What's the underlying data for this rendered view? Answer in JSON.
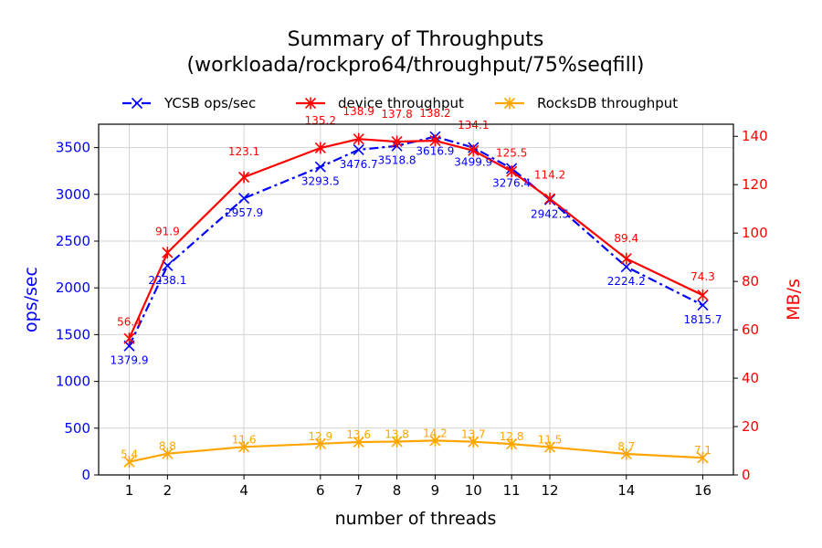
{
  "chart_data": {
    "type": "line",
    "title": "Summary of Throughputs",
    "subtitle": "(workloada/rockpro64/throughput/75%seqfill)",
    "xlabel": "number of threads",
    "ylabel_left": "ops/sec",
    "ylabel_right": "MB/s",
    "x": [
      1,
      2,
      4,
      6,
      7,
      8,
      9,
      10,
      11,
      12,
      14,
      16
    ],
    "xlim": [
      0.2,
      16.8
    ],
    "ylim_left": [
      0,
      3750
    ],
    "ylim_right": [
      0,
      145
    ],
    "yticks_left": [
      0,
      500,
      1000,
      1500,
      2000,
      2500,
      3000,
      3500
    ],
    "yticks_right": [
      0,
      20,
      40,
      60,
      80,
      100,
      120,
      140
    ],
    "grid": true,
    "legend_position": "top-center",
    "left_axis_color": "#0000ff",
    "right_axis_color": "#ff0000",
    "series": [
      {
        "name": "YCSB ops/sec",
        "axis": "left",
        "color": "#0000ff",
        "style": "dashdot",
        "marker": "x",
        "values": [
          1379.9,
          2238.1,
          2957.9,
          3293.5,
          3476.7,
          3518.8,
          3616.9,
          3499.9,
          3276.4,
          2942.5,
          2224.2,
          1815.7
        ],
        "labels": [
          "1379.9",
          "2238.1",
          "2957.9",
          "3293.5",
          "3476.7",
          "3518.8",
          "3616.9",
          "3499.9",
          "3276.4",
          "2942.5",
          "2224.2",
          "1815.7"
        ]
      },
      {
        "name": "device throughput",
        "axis": "right",
        "color": "#ff0000",
        "style": "solid",
        "marker": "asterisk",
        "values": [
          56.4,
          91.9,
          123.1,
          135.2,
          138.9,
          137.8,
          138.2,
          134.1,
          125.5,
          114.2,
          89.4,
          74.3
        ],
        "labels": [
          "56.4",
          "91.9",
          "123.1",
          "135.2",
          "138.9",
          "137.8",
          "138.2",
          "134.1",
          "125.5",
          "114.2",
          "89.4",
          "74.3"
        ]
      },
      {
        "name": "RocksDB throughput",
        "axis": "right",
        "color": "#ffa500",
        "style": "solid",
        "marker": "asterisk",
        "values": [
          5.4,
          8.8,
          11.6,
          12.9,
          13.6,
          13.8,
          14.2,
          13.7,
          12.8,
          11.5,
          8.7,
          7.1
        ],
        "labels": [
          "5.4",
          "8.8",
          "11.6",
          "12.9",
          "13.6",
          "13.8",
          "14.2",
          "13.7",
          "12.8",
          "11.5",
          "8.7",
          "7.1"
        ]
      }
    ]
  }
}
